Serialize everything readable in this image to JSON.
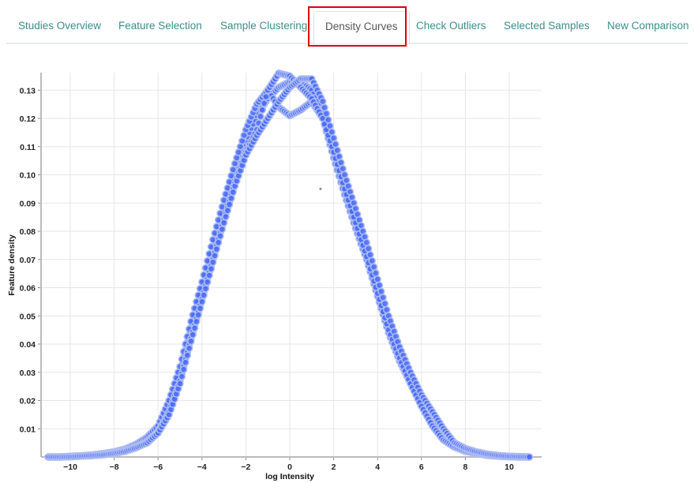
{
  "tabs": [
    {
      "label": "Studies Overview",
      "active": false
    },
    {
      "label": "Feature Selection",
      "active": false
    },
    {
      "label": "Sample Clustering",
      "active": false
    },
    {
      "label": "Density Curves",
      "active": true
    },
    {
      "label": "Check Outliers",
      "active": false
    },
    {
      "label": "Selected Samples",
      "active": false
    },
    {
      "label": "New Comparison",
      "active": false
    }
  ],
  "chart_data": {
    "type": "scatter",
    "xlabel": "log Intensity",
    "ylabel": "Feature density",
    "xlim": [
      -11.4,
      11.4
    ],
    "ylim": [
      0,
      0.137
    ],
    "grid": true,
    "x_ticks": [
      -10,
      -8,
      -6,
      -4,
      -2,
      0,
      2,
      4,
      6,
      8,
      10
    ],
    "y_ticks": [
      0.01,
      0.02,
      0.03,
      0.04,
      0.05,
      0.06,
      0.07,
      0.08,
      0.09,
      0.1,
      0.11,
      0.12,
      0.13
    ],
    "x_tick_labels": [
      "−10",
      "−8",
      "−6",
      "−4",
      "−2",
      "0",
      "2",
      "4",
      "6",
      "8",
      "10"
    ],
    "y_tick_labels": [
      "0.01",
      "0.02",
      "0.03",
      "0.04",
      "0.05",
      "0.06",
      "0.07",
      "0.08",
      "0.09",
      "0.10",
      "0.11",
      "0.12",
      "0.13"
    ],
    "marker_color": "#4a6cf7",
    "marker_stroke": "#aebcf2",
    "x": [
      -11,
      -10.5,
      -10,
      -9.5,
      -9,
      -8.5,
      -8,
      -7.5,
      -7,
      -6.5,
      -6,
      -5.5,
      -5,
      -4.5,
      -4,
      -3.5,
      -3,
      -2.5,
      -2,
      -1.5,
      -1,
      -0.5,
      0,
      0.5,
      1,
      1.5,
      2,
      2.5,
      3,
      3.5,
      4,
      4.5,
      5,
      5.5,
      6,
      6.5,
      7,
      7.5,
      8,
      8.5,
      9,
      9.5,
      10,
      10.5,
      11
    ],
    "series": [
      {
        "values": [
          0,
          0,
          0.0002,
          0.0004,
          0.0006,
          0.001,
          0.0016,
          0.0025,
          0.004,
          0.006,
          0.01,
          0.018,
          0.03,
          0.046,
          0.06,
          0.074,
          0.088,
          0.101,
          0.112,
          0.121,
          0.127,
          0.131,
          0.133,
          0.133,
          0.13,
          0.122,
          0.109,
          0.096,
          0.084,
          0.072,
          0.059,
          0.046,
          0.036,
          0.027,
          0.019,
          0.012,
          0.007,
          0.004,
          0.0025,
          0.0015,
          0.0008,
          0.0004,
          0.0002,
          0.0001,
          0
        ]
      },
      {
        "values": [
          0,
          0,
          0.0002,
          0.0004,
          0.0007,
          0.0012,
          0.0018,
          0.0028,
          0.0045,
          0.007,
          0.011,
          0.02,
          0.032,
          0.048,
          0.062,
          0.077,
          0.091,
          0.104,
          0.116,
          0.125,
          0.13,
          0.124,
          0.121,
          0.123,
          0.126,
          0.12,
          0.106,
          0.093,
          0.081,
          0.07,
          0.057,
          0.044,
          0.034,
          0.026,
          0.018,
          0.012,
          0.007,
          0.004,
          0.0024,
          0.0014,
          0.0007,
          0.0003,
          0.0001,
          0,
          0
        ]
      },
      {
        "values": [
          0,
          0,
          0.0001,
          0.0003,
          0.0005,
          0.0009,
          0.0014,
          0.0022,
          0.0036,
          0.0055,
          0.009,
          0.016,
          0.027,
          0.042,
          0.056,
          0.07,
          0.084,
          0.097,
          0.108,
          0.116,
          0.13,
          0.136,
          0.135,
          0.131,
          0.127,
          0.12,
          0.108,
          0.095,
          0.083,
          0.071,
          0.058,
          0.045,
          0.035,
          0.026,
          0.018,
          0.011,
          0.006,
          0.0035,
          0.002,
          0.0012,
          0.0006,
          0.0003,
          0.0001,
          0,
          0
        ]
      },
      {
        "values": [
          0,
          0,
          0.0001,
          0.0003,
          0.0005,
          0.0008,
          0.0013,
          0.002,
          0.0033,
          0.005,
          0.0085,
          0.015,
          0.026,
          0.041,
          0.055,
          0.069,
          0.083,
          0.096,
          0.107,
          0.114,
          0.12,
          0.126,
          0.131,
          0.134,
          0.134,
          0.126,
          0.113,
          0.1,
          0.088,
          0.076,
          0.063,
          0.05,
          0.039,
          0.03,
          0.022,
          0.016,
          0.01,
          0.005,
          0.003,
          0.0018,
          0.001,
          0.0005,
          0.0002,
          0.0001,
          0
        ]
      }
    ],
    "outliers": [
      {
        "x": 1.4,
        "y": 0.095
      }
    ]
  }
}
